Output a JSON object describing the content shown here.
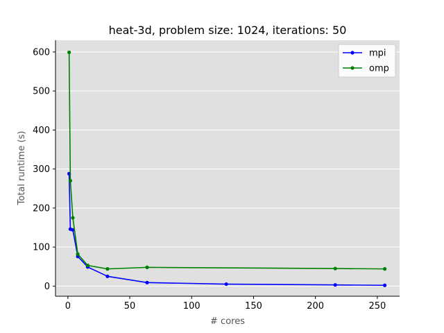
{
  "chart_data": {
    "type": "line",
    "title": "heat-3d, problem size: 1024, iterations: 50",
    "xlabel": "# cores",
    "ylabel": "Total runtime (s)",
    "xlim": [
      -10,
      268
    ],
    "ylim": [
      -26,
      630
    ],
    "xticks": [
      0,
      50,
      100,
      150,
      200,
      250
    ],
    "yticks": [
      0,
      100,
      200,
      300,
      400,
      500,
      600
    ],
    "grid": "horizontal",
    "legend_position": "top-right",
    "background_color": "#e0e0e0",
    "series": [
      {
        "name": "mpi",
        "color": "#0000ff",
        "x": [
          1,
          2,
          4,
          8,
          16,
          32,
          64,
          128,
          216,
          256
        ],
        "y": [
          288,
          146,
          144,
          76,
          49,
          25,
          9,
          5,
          3,
          2
        ]
      },
      {
        "name": "omp",
        "color": "#008000",
        "x": [
          1,
          2,
          4,
          8,
          16,
          32,
          64,
          216,
          256
        ],
        "y": [
          599,
          270,
          175,
          82,
          53,
          44,
          48,
          45,
          44
        ]
      }
    ]
  }
}
